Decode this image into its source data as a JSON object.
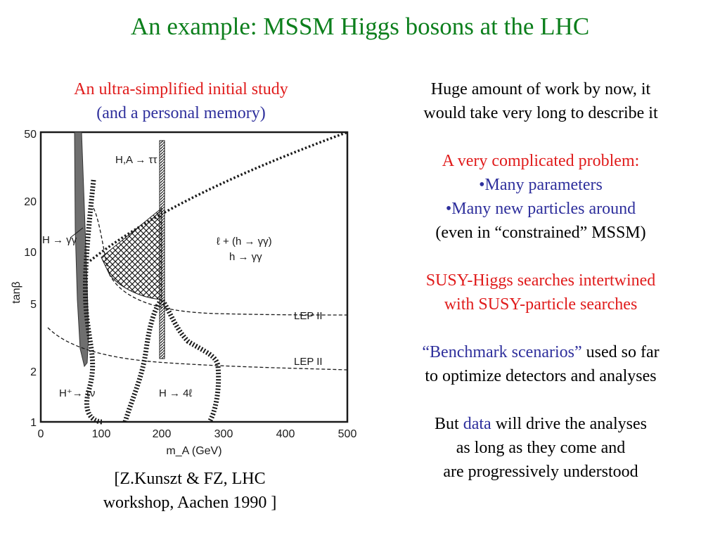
{
  "title": "An example: MSSM Higgs bosons at the LHC",
  "left": {
    "heading_line1": "An ultra-simplified initial study",
    "heading_line2": "(and a personal memory)",
    "caption_line1": "[Z.Kunszt & FZ, LHC",
    "caption_line2": "workshop,  Aachen 1990 ]"
  },
  "figure": {
    "ylabel": "tanβ",
    "xlabel": "m_A (GeV)",
    "x_ticks": [
      "0",
      "100",
      "200",
      "300",
      "400",
      "500"
    ],
    "y_ticks": [
      "1",
      "2",
      "5",
      "10",
      "20",
      "50"
    ],
    "labels": {
      "h_aa_tautau": "H,A → ττ",
      "h_gammagamma": "H → γγ",
      "l_h_gamma": "ℓ + (h → γγ)",
      "h_gamma": "h → γγ",
      "lep2_upper": "LEP II",
      "lep2_lower": "LEP II",
      "h_tau_nu": "H⁺→ τν",
      "h_4l": "H → 4ℓ"
    },
    "colors": {
      "shade": "#6f6f6f",
      "ink": "#1a1a1a"
    }
  },
  "right": {
    "p1_line1": "Huge amount of work by now, it",
    "p1_line2": "would take very long to describe it",
    "p2_line1": "A very complicated problem:",
    "p2_bullet1": "•Many parameters",
    "p2_bullet2": "•Many new particles around",
    "p2_line4": "(even in “constrained” MSSM)",
    "p3_line1": "SUSY-Higgs searches intertwined",
    "p3_line2": "with SUSY-particle searches",
    "p4_quote": "“Benchmark scenarios”",
    "p4_rest": " used so far",
    "p4_line2": "to optimize detectors and analyses",
    "p5_but": "But ",
    "p5_data": "data",
    "p5_rest": " will drive the analyses",
    "p5_line2": "as long as they come and",
    "p5_line3": "are progressively understood"
  },
  "colors": {
    "title": "#0c7f1c",
    "red": "#e01b1b",
    "blue": "#2e2f9c"
  }
}
